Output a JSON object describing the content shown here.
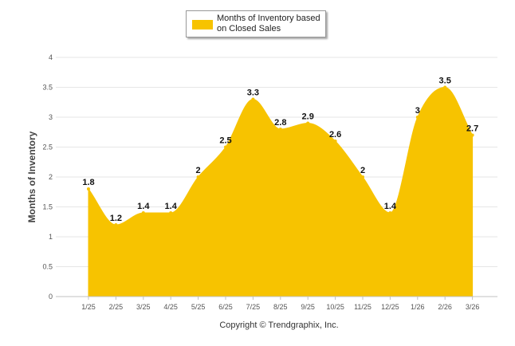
{
  "legend": {
    "label": "Months of Inventory based on Closed Sales"
  },
  "copyright": "Copyright © Trendgraphix, Inc.",
  "colors": {
    "fill": "#F7C300",
    "grid": "#E6E6E6",
    "axis": "#C0C0C0"
  },
  "chart_data": {
    "type": "area",
    "title": "",
    "xlabel": "",
    "ylabel": "Months of Inventory",
    "categories": [
      "1/25",
      "2/25",
      "3/25",
      "4/25",
      "5/25",
      "6/25",
      "7/25",
      "8/25",
      "9/25",
      "10/25",
      "11/25",
      "12/25",
      "1/26",
      "2/26",
      "3/26"
    ],
    "values": [
      1.8,
      1.2,
      1.4,
      1.4,
      2,
      2.5,
      3.3,
      2.8,
      2.9,
      2.6,
      2,
      1.4,
      3,
      3.5,
      2.7
    ],
    "data_labels": [
      "1.8",
      "1.2",
      "1.4",
      "1.4",
      "2",
      "2.5",
      "3.3",
      "2.8",
      "2.9",
      "2.6",
      "2",
      "1.4",
      "3",
      "3.5",
      "2.7"
    ],
    "y_ticks": [
      "0",
      "0.5",
      "1",
      "1.5",
      "2",
      "2.5",
      "3",
      "3.5",
      "4"
    ],
    "ylim": [
      0,
      4
    ],
    "grid": true,
    "legend_position": "top-center",
    "series": [
      {
        "name": "Months of Inventory based on Closed Sales",
        "values": [
          1.8,
          1.2,
          1.4,
          1.4,
          2,
          2.5,
          3.3,
          2.8,
          2.9,
          2.6,
          2,
          1.4,
          3,
          3.5,
          2.7
        ]
      }
    ]
  }
}
